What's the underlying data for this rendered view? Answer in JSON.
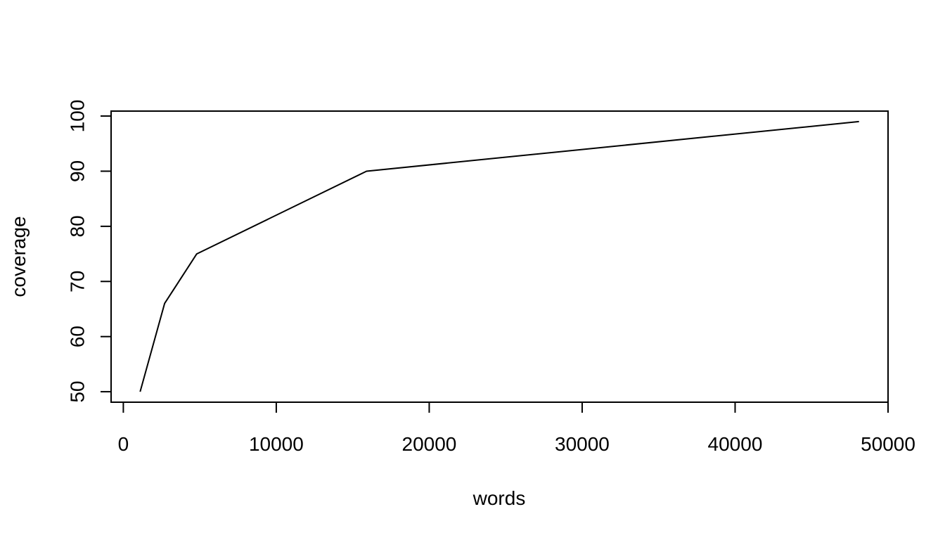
{
  "chart_data": {
    "type": "line",
    "title": "",
    "xlabel": "words",
    "ylabel": "coverage",
    "x": [
      1100,
      2700,
      4800,
      15900,
      48100
    ],
    "series": [
      {
        "values": [
          50,
          66,
          75,
          90,
          99
        ]
      }
    ],
    "xlim": [
      -800,
      50000
    ],
    "ylim": [
      48.1,
      100.9
    ],
    "x_ticks": [
      0,
      10000,
      20000,
      30000,
      40000,
      50000
    ],
    "x_tick_labels": [
      "0",
      "10000",
      "20000",
      "30000",
      "40000",
      "50000"
    ],
    "y_ticks": [
      50,
      60,
      70,
      80,
      90,
      100
    ],
    "y_tick_labels": [
      "50",
      "60",
      "70",
      "80",
      "90",
      "100"
    ],
    "grid": false,
    "legend": "none",
    "line_color": "#000000"
  }
}
